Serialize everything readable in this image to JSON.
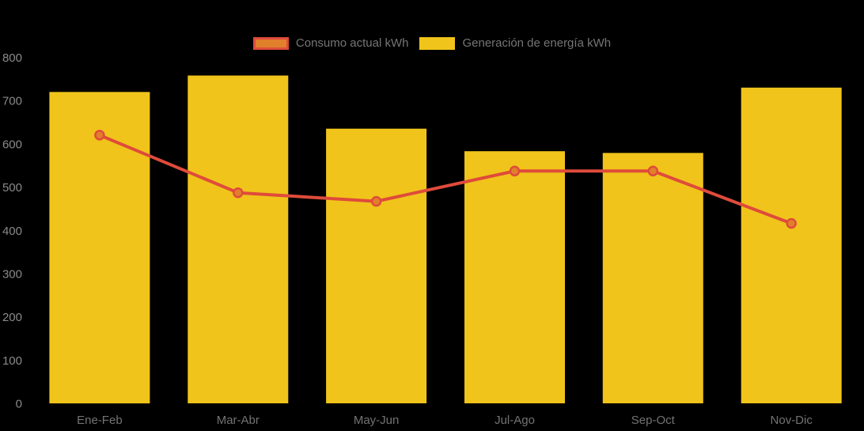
{
  "chart_data": {
    "type": "bar",
    "subtype": "bar-line-combo",
    "title": "",
    "xlabel": "",
    "ylabel": "",
    "categories": [
      "Ene-Feb",
      "Mar-Abr",
      "May-Jun",
      "Jul-Ago",
      "Sep-Oct",
      "Nov-Dic"
    ],
    "series": [
      {
        "name": "Consumo actual kWh",
        "type": "line",
        "values": [
          620,
          487,
          467,
          537,
          537,
          416
        ],
        "line_color": "#DF4B3B",
        "marker_fill": "#E0802B",
        "marker_stroke": "#DF4B3B"
      },
      {
        "name": "Generación de energía kWh",
        "type": "bar",
        "values": [
          720,
          758,
          635,
          583,
          579,
          730
        ],
        "color": "#F0C41A"
      }
    ],
    "ylim": [
      0,
      800
    ],
    "yticks": [
      0,
      100,
      200,
      300,
      400,
      500,
      600,
      700,
      800
    ],
    "grid": false,
    "legend_position": "top-center",
    "background_color": "#000000",
    "ytick_text_color": "#8A8A8A",
    "xtick_text_color": "#737373",
    "legend_text_color": "#757575"
  }
}
